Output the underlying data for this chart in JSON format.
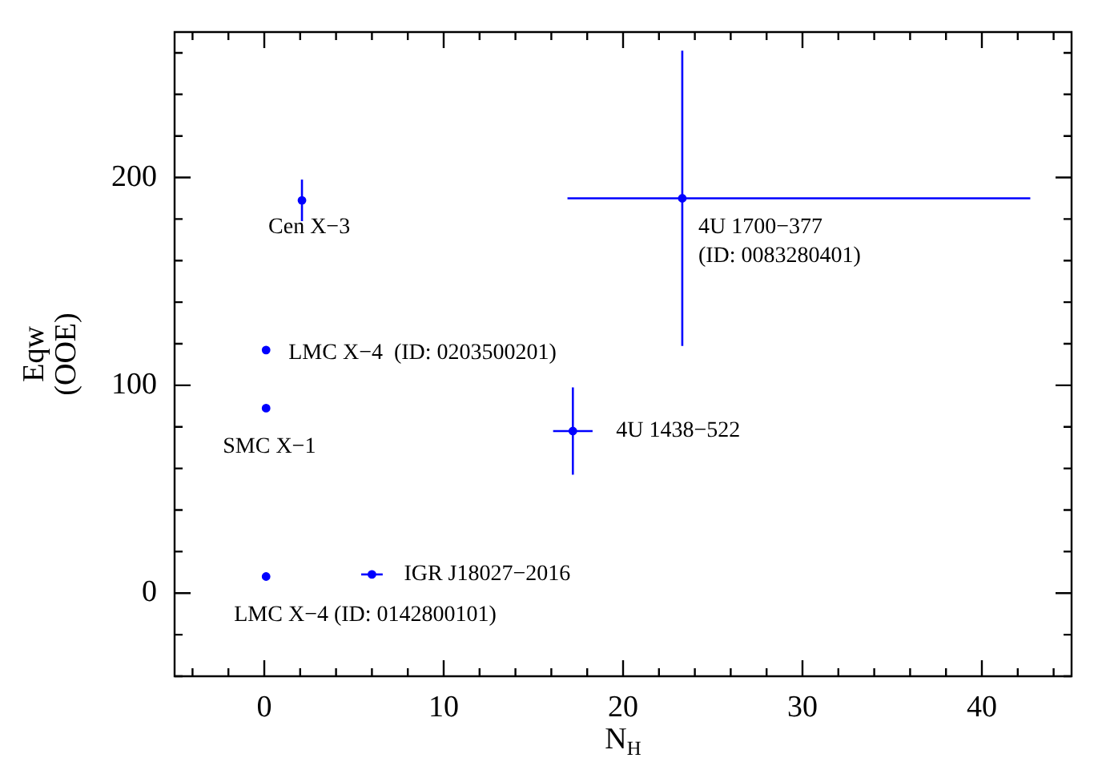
{
  "chart_data": {
    "type": "scatter",
    "xlabel": "N$_{H}$",
    "ylabel": "Eqw\n(OOE)",
    "marker": "circle",
    "xlim": [
      -5,
      45
    ],
    "ylim": [
      -40,
      270
    ],
    "xticks": [
      {
        "value": -4,
        "label": null
      },
      {
        "value": -2,
        "label": null
      },
      0,
      {
        "value": 2,
        "label": null
      },
      {
        "value": 4,
        "label": null
      },
      {
        "value": 6,
        "label": null
      },
      {
        "value": 8,
        "label": null
      },
      10,
      {
        "value": 12,
        "label": null
      },
      {
        "value": 14,
        "label": null
      },
      {
        "value": 16,
        "label": null
      },
      {
        "value": 18,
        "label": null
      },
      20,
      {
        "value": 22,
        "label": null
      },
      {
        "value": 24,
        "label": null
      },
      {
        "value": 26,
        "label": null
      },
      {
        "value": 28,
        "label": null
      },
      30,
      {
        "value": 32,
        "label": null
      },
      {
        "value": 34,
        "label": null
      },
      {
        "value": 36,
        "label": null
      },
      {
        "value": 38,
        "label": null
      },
      40,
      {
        "value": 42,
        "label": null
      },
      {
        "value": 44,
        "label": null
      }
    ],
    "yticks": [
      {
        "value": -40,
        "label": null
      },
      {
        "value": -20,
        "label": null
      },
      0,
      {
        "value": 20,
        "label": null
      },
      {
        "value": 40,
        "label": null
      },
      {
        "value": 60,
        "label": null
      },
      {
        "value": 80,
        "label": null
      },
      100,
      {
        "value": 120,
        "label": null
      },
      {
        "value": 140,
        "label": null
      },
      {
        "value": 160,
        "label": null
      },
      {
        "value": 180,
        "label": null
      },
      200,
      {
        "value": 220,
        "label": null
      },
      {
        "value": 240,
        "label": null
      },
      {
        "value": 260,
        "label": null
      }
    ],
    "series": [
      {
        "color": "#0000ff",
        "x": [
          2.1,
          0.1,
          0.1,
          0.1,
          6.0,
          17.2,
          23.3
        ],
        "values": [
          189,
          117,
          89,
          8,
          9,
          78,
          190
        ],
        "errors": [
          10,
          null,
          null,
          null,
          null,
          21,
          71
        ],
        "xerrors": [
          null,
          null,
          null,
          null,
          0.6,
          1.1,
          [
            16.9,
            42.7
          ]
        ]
      }
    ],
    "annotations": [
      "Cen X−3",
      "LMC X−4  (ID: 0203500201)",
      "SMC X−1",
      "LMC X−4 (ID: 0142800101)",
      "IGR J18027−2016",
      "4U 1438−522",
      "4U 1700−377\n(ID: 0083280401)"
    ]
  }
}
